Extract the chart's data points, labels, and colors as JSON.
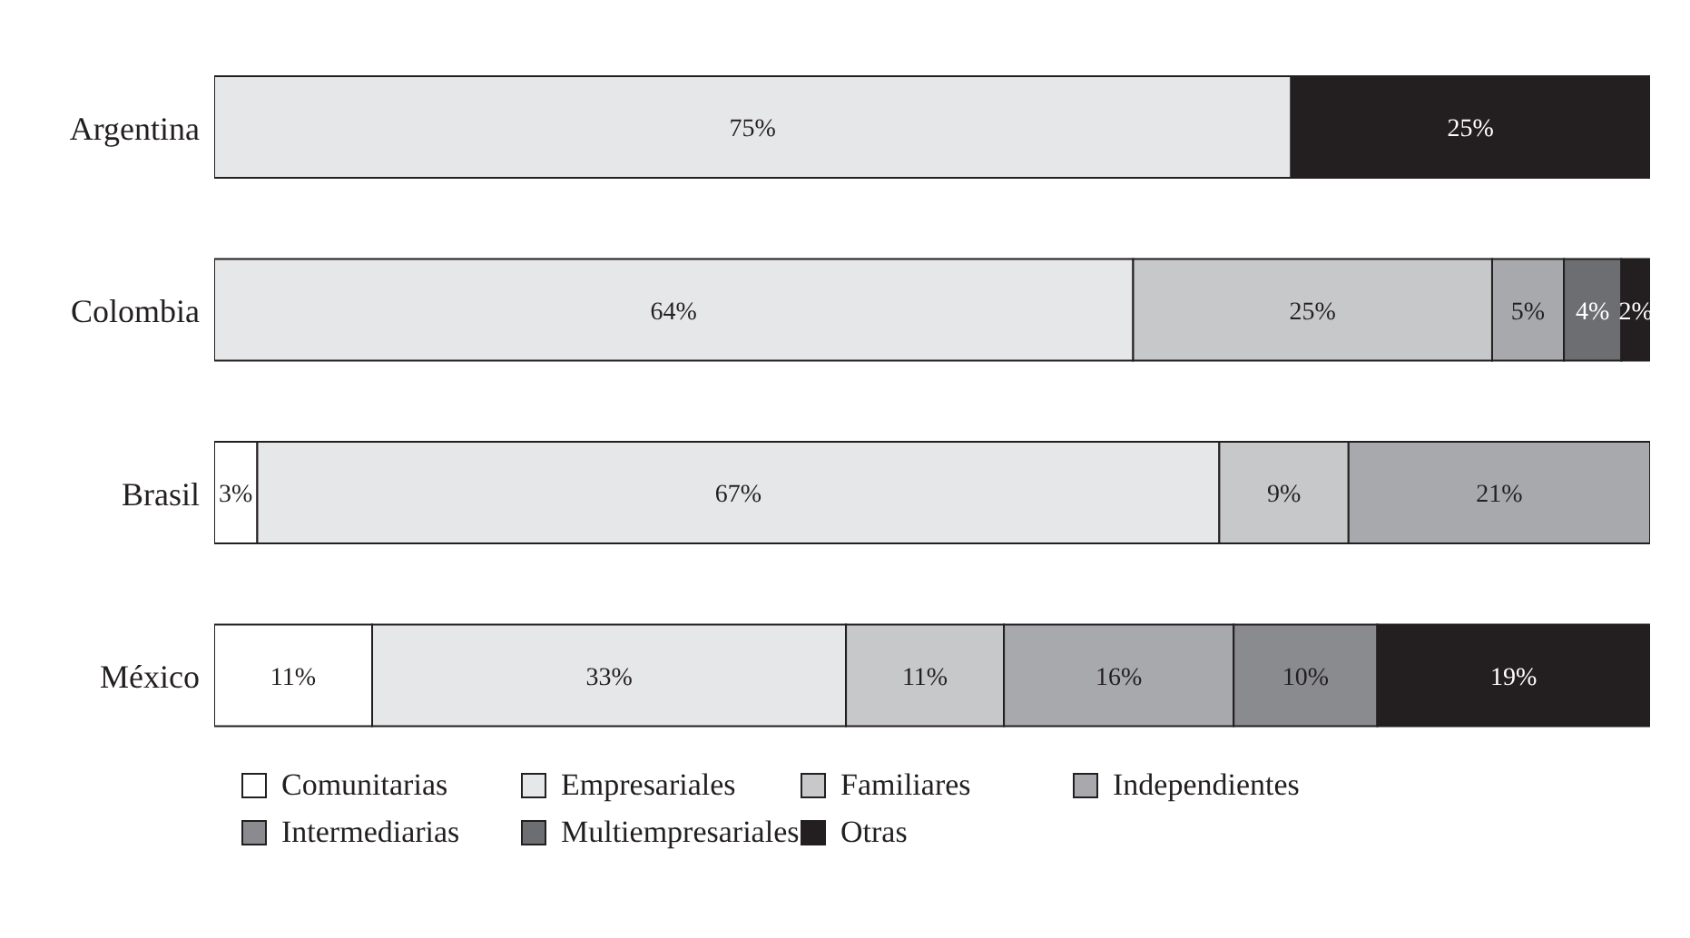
{
  "chart_data": {
    "type": "bar",
    "orientation": "horizontal",
    "stacked": true,
    "legend": "bottom",
    "categories": [
      "Argentina",
      "Colombia",
      "Brasil",
      "México"
    ],
    "series": [
      {
        "name": "Comunitarias",
        "color": "#ffffff",
        "values": [
          null,
          null,
          3,
          11
        ],
        "value_labels": [
          null,
          null,
          "3%",
          "11%"
        ]
      },
      {
        "name": "Empresariales",
        "color": "#e6e7e8",
        "values": [
          75,
          64,
          67,
          33
        ],
        "value_labels": [
          "75%",
          "64%",
          "67%",
          "33%"
        ]
      },
      {
        "name": "Familiares",
        "color": "#c7c8ca",
        "values": [
          null,
          25,
          9,
          11
        ],
        "value_labels": [
          null,
          "25%",
          "9%",
          "11%"
        ]
      },
      {
        "name": "Independientes",
        "color": "#a7a9ac",
        "values": [
          null,
          5,
          21,
          16
        ],
        "value_labels": [
          null,
          "5%",
          "21%",
          "16%"
        ]
      },
      {
        "name": "Intermediarias",
        "color": "#8a8b8e",
        "values": [
          null,
          null,
          null,
          10
        ],
        "value_labels": [
          null,
          null,
          null,
          "10%"
        ]
      },
      {
        "name": "Multiempresariales",
        "color": "#6d6e71",
        "values": [
          null,
          4,
          null,
          null
        ],
        "value_labels": [
          null,
          "4%",
          null,
          null
        ]
      },
      {
        "name": "Otras",
        "color": "#231f20",
        "values": [
          25,
          2,
          null,
          19
        ],
        "value_labels": [
          "25%",
          "2%",
          null,
          "19%"
        ]
      }
    ]
  }
}
